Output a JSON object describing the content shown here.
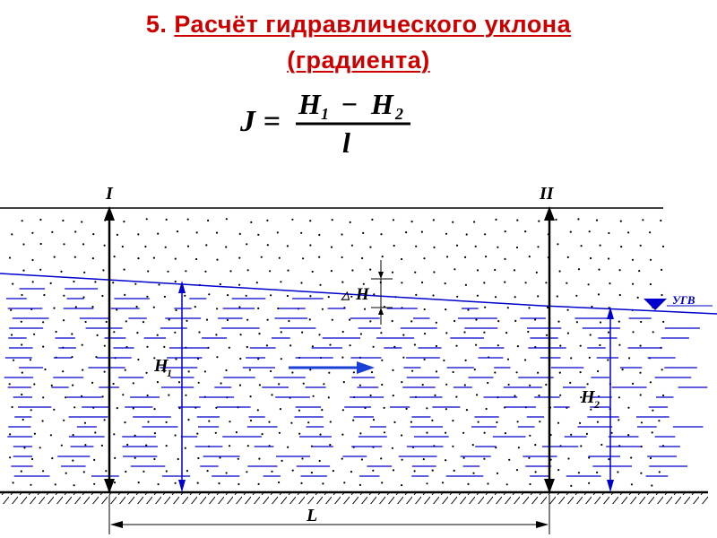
{
  "title": {
    "number": "5.",
    "line1": "Расчёт гидравлического уклона",
    "line2": "(градиента)"
  },
  "formula": {
    "lhs": "J =",
    "numerator_h1": "H",
    "numerator_h1_sub": "1",
    "minus": "−",
    "numerator_h2": "H",
    "numerator_h2_sub": "2",
    "denominator": "l"
  },
  "diagram": {
    "section_1_label": "I",
    "section_2_label": "II",
    "h1_label": "H",
    "h1_sub": "1",
    "h2_label": "H",
    "h2_sub": "2",
    "delta_h_symbol": "△",
    "delta_h_label": "H",
    "length_label": "L",
    "water_table_label": "УГВ",
    "colors": {
      "water_table": "#0000cc",
      "dashes": "#0000cc",
      "arrow": "#1a3fd6",
      "ink": "#000000"
    }
  }
}
